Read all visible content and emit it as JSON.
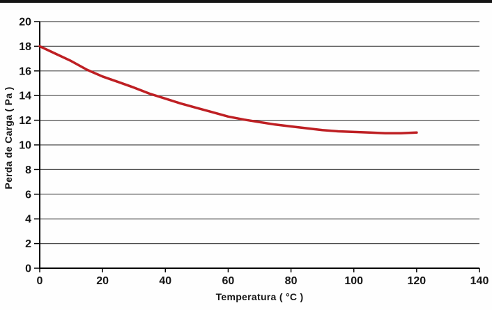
{
  "chart_data": {
    "type": "line",
    "title": "",
    "xlabel": "Temperatura ( °C )",
    "ylabel": "Perda de Carga ( Pa )",
    "xlim": [
      0,
      140
    ],
    "ylim": [
      0,
      20
    ],
    "x_ticks": [
      0,
      20,
      40,
      60,
      80,
      100,
      120,
      140
    ],
    "y_ticks": [
      0,
      2,
      4,
      6,
      8,
      10,
      12,
      14,
      16,
      18,
      20
    ],
    "grid": "horizontal-only",
    "legend": "none",
    "series": [
      {
        "name": "Perda de Carga",
        "color": "#be1f23",
        "points": [
          [
            0,
            18.0
          ],
          [
            5,
            17.4
          ],
          [
            10,
            16.8
          ],
          [
            15,
            16.1
          ],
          [
            20,
            15.55
          ],
          [
            25,
            15.1
          ],
          [
            30,
            14.65
          ],
          [
            35,
            14.15
          ],
          [
            40,
            13.75
          ],
          [
            45,
            13.35
          ],
          [
            50,
            13.0
          ],
          [
            55,
            12.65
          ],
          [
            60,
            12.3
          ],
          [
            65,
            12.05
          ],
          [
            70,
            11.85
          ],
          [
            75,
            11.65
          ],
          [
            80,
            11.5
          ],
          [
            85,
            11.35
          ],
          [
            90,
            11.2
          ],
          [
            95,
            11.1
          ],
          [
            100,
            11.05
          ],
          [
            105,
            11.0
          ],
          [
            110,
            10.95
          ],
          [
            115,
            10.95
          ],
          [
            120,
            11.0
          ]
        ]
      }
    ]
  },
  "colors": {
    "axis": "#000000",
    "gridline": "#4c4c4c",
    "tick": "#000000",
    "text": "#151515",
    "top_border": "#141414",
    "background": "#fefefe"
  }
}
